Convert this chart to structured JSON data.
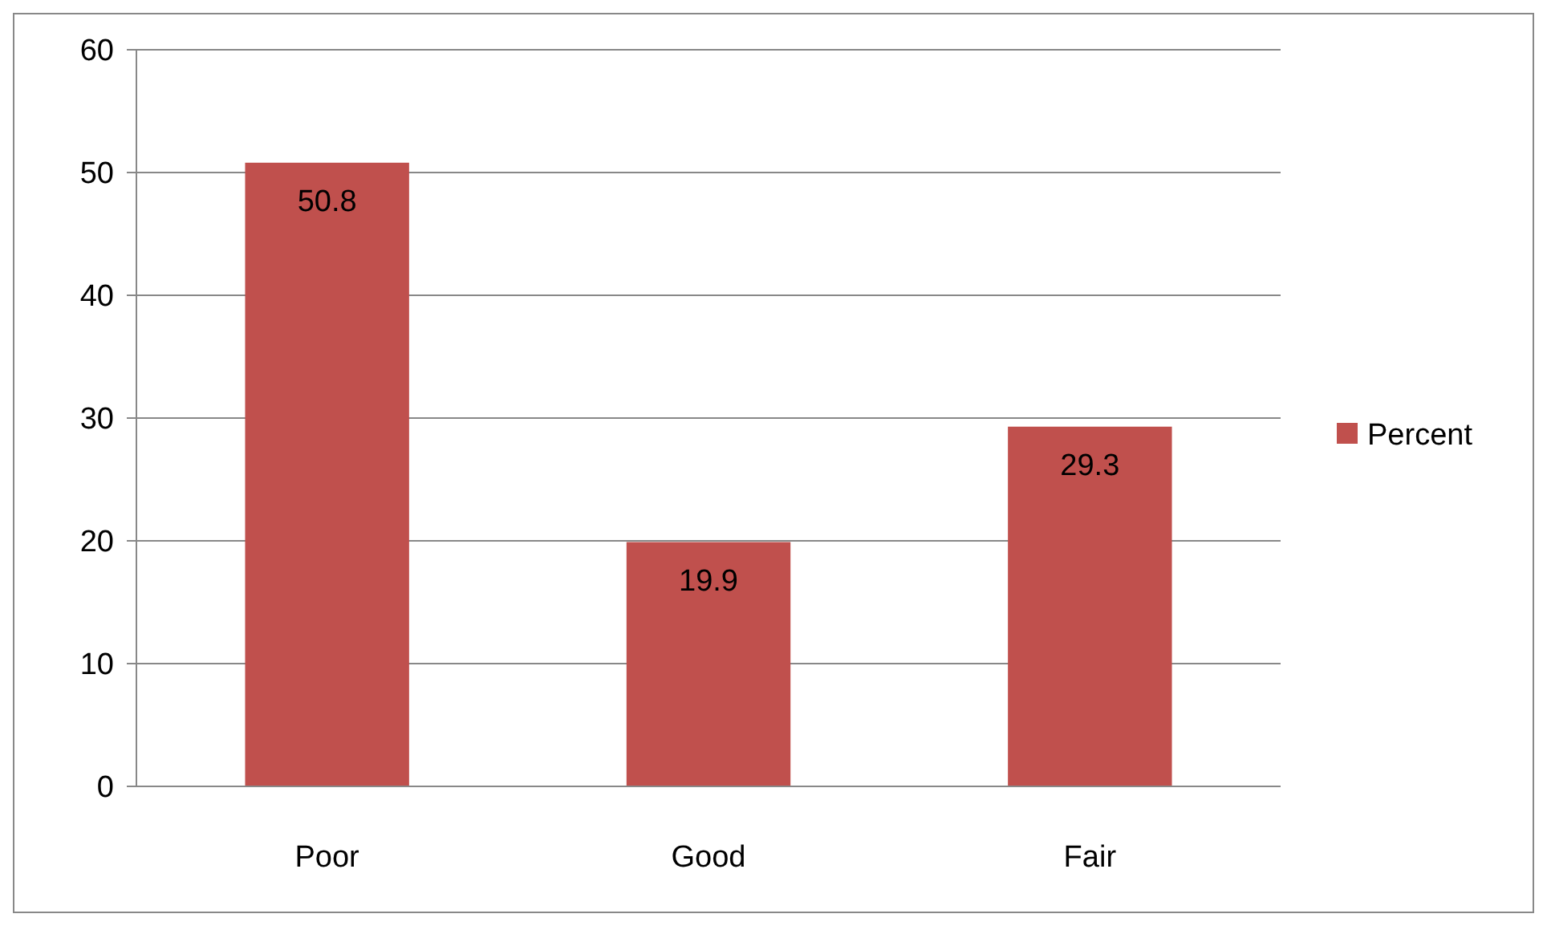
{
  "chart_data": {
    "type": "bar",
    "categories": [
      "Poor",
      "Good",
      "Fair"
    ],
    "series": [
      {
        "name": "Percent",
        "color": "#c0504d",
        "values": [
          50.8,
          19.9,
          29.3
        ]
      }
    ],
    "ylim": [
      0,
      60
    ],
    "yticks": [
      0,
      10,
      20,
      30,
      40,
      50,
      60
    ],
    "grid": "y",
    "legend": "right",
    "data_labels": true
  }
}
